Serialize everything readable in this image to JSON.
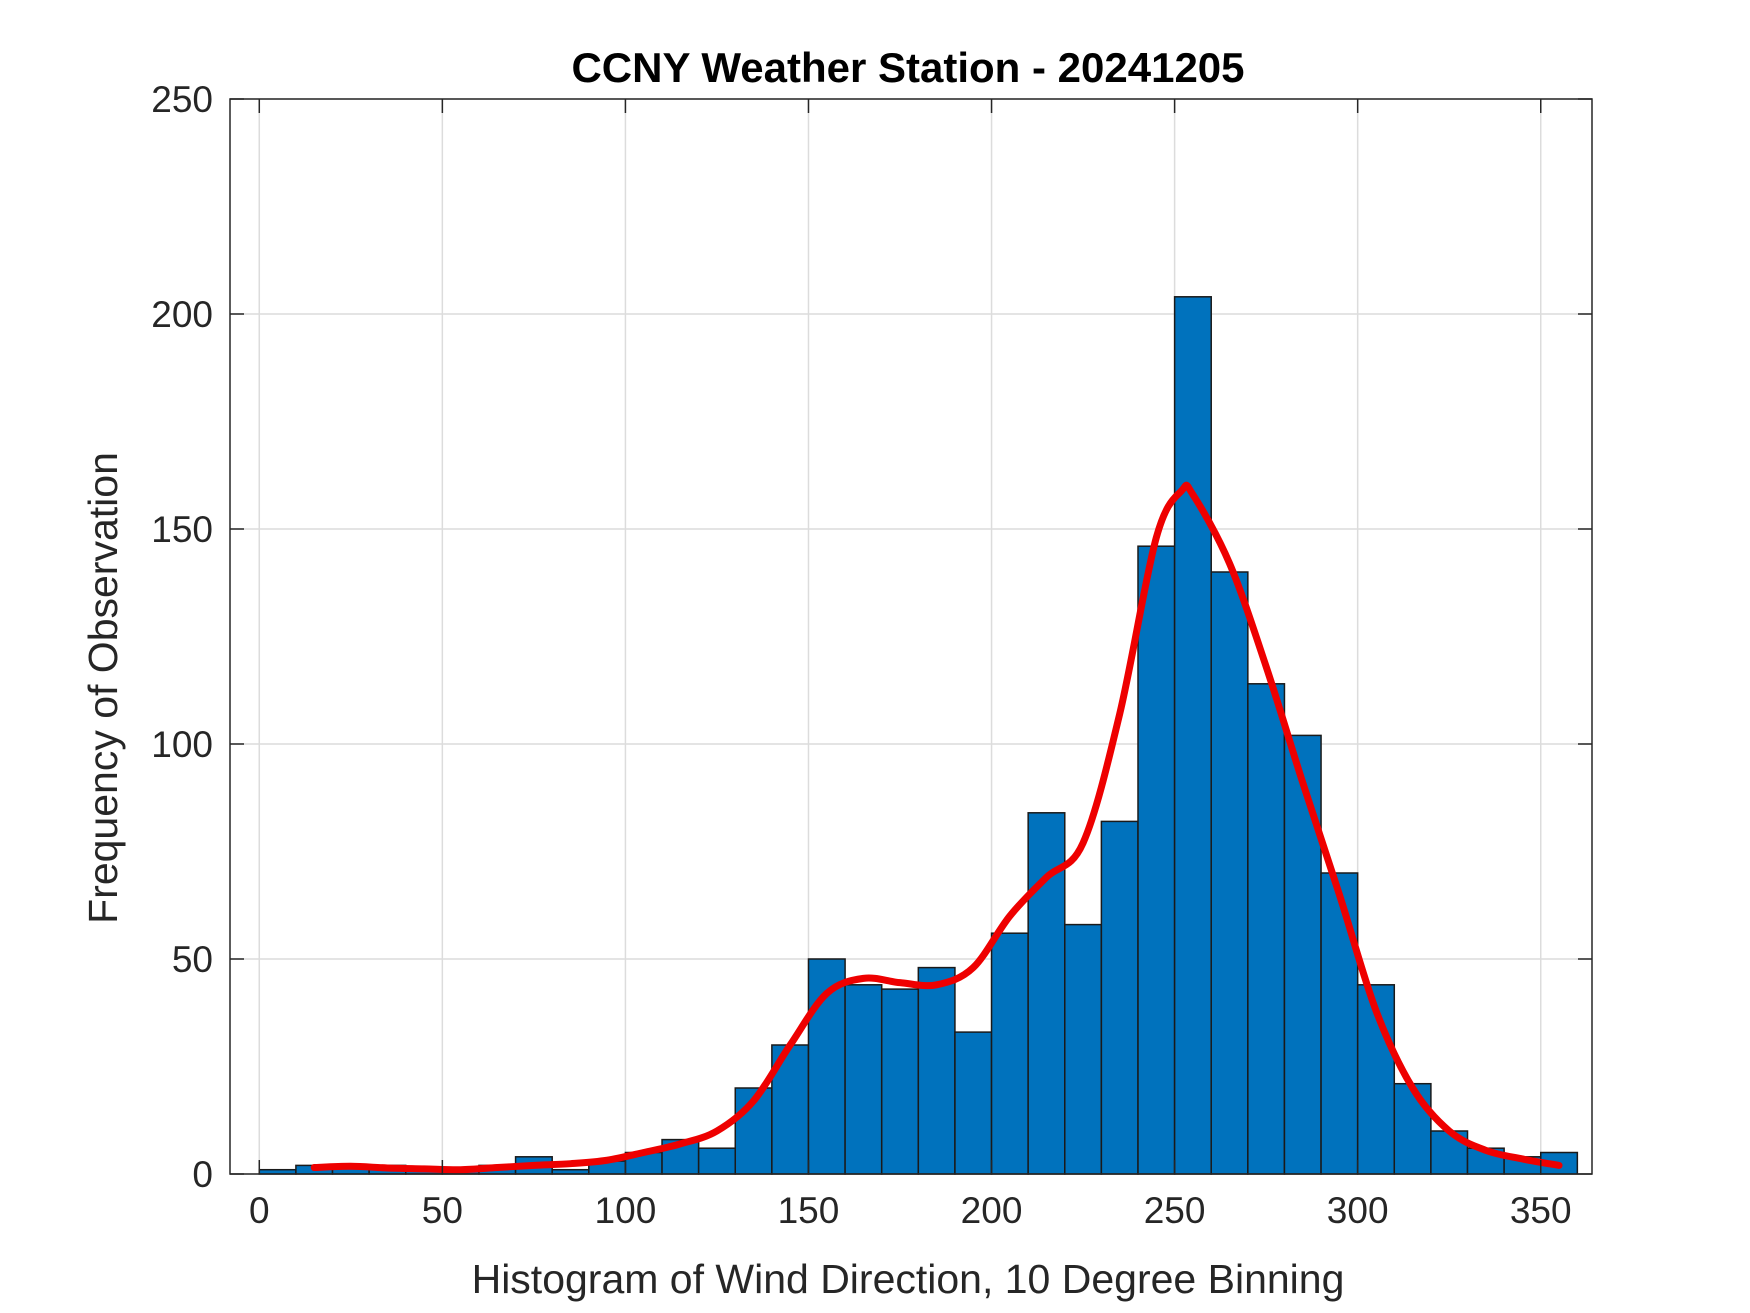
{
  "chart_data": {
    "type": "bar",
    "title": "CCNY Weather Station - 20241205",
    "xlabel": "Histogram of Wind Direction, 10 Degree Binning",
    "ylabel": "Frequency of Observation",
    "xlim": [
      -8,
      364
    ],
    "ylim": [
      0,
      250
    ],
    "xticks": [
      0,
      50,
      100,
      150,
      200,
      250,
      300,
      350
    ],
    "yticks": [
      0,
      50,
      100,
      150,
      200,
      250
    ],
    "grid": true,
    "bin_width": 10,
    "bin_edges": [
      0,
      10,
      20,
      30,
      40,
      50,
      60,
      70,
      80,
      90,
      100,
      110,
      120,
      130,
      140,
      150,
      160,
      170,
      180,
      190,
      200,
      210,
      220,
      230,
      240,
      250,
      260,
      270,
      280,
      290,
      300,
      310,
      320,
      330,
      340,
      350,
      360
    ],
    "values": [
      1,
      2,
      2,
      2,
      1,
      1,
      2,
      4,
      1,
      3,
      5,
      8,
      6,
      20,
      30,
      50,
      44,
      43,
      48,
      33,
      56,
      84,
      58,
      82,
      146,
      204,
      140,
      114,
      102,
      70,
      44,
      21,
      10,
      6,
      4,
      5
    ],
    "fit_curve": {
      "name": "density fit",
      "x": [
        15,
        25,
        35,
        45,
        55,
        65,
        75,
        85,
        95,
        105,
        115,
        125,
        135,
        145,
        155,
        165,
        175,
        185,
        195,
        205,
        215,
        225,
        235,
        245,
        252,
        255,
        265,
        275,
        285,
        295,
        305,
        315,
        325,
        335,
        345,
        355
      ],
      "y": [
        1.5,
        1.8,
        1.4,
        1.2,
        1,
        1.5,
        2,
        2.4,
        3.2,
        5,
        7,
        10,
        17,
        30,
        42,
        45.5,
        44.5,
        44,
        48,
        60,
        69,
        77,
        107,
        148,
        159,
        158,
        142,
        118,
        91,
        65,
        38,
        20,
        10,
        5.5,
        3.5,
        2
      ]
    },
    "colors": {
      "bar_fill": "#0072BD",
      "bar_edge": "#1a1a1a",
      "fit_line": "#EE0000"
    }
  }
}
